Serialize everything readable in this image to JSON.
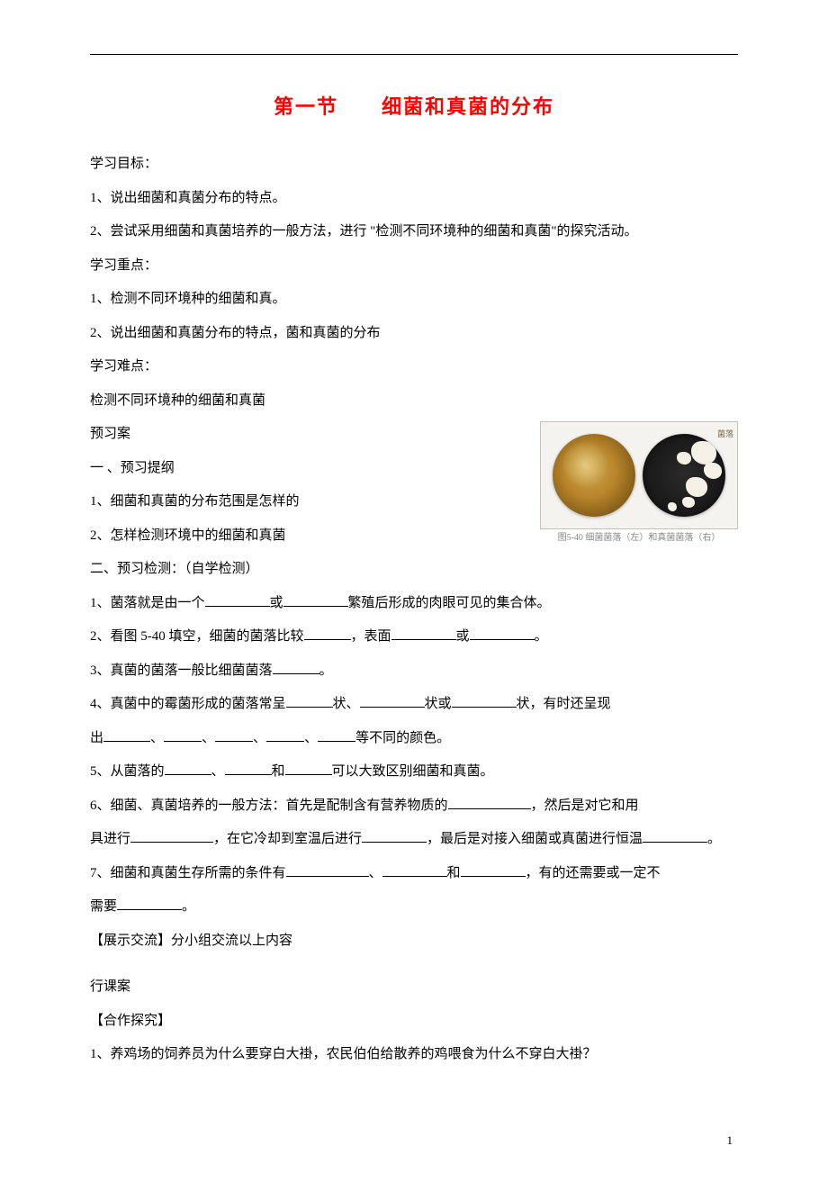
{
  "title": "第一节　　细菌和真菌的分布",
  "sections": {
    "objectives_h": "学习目标：",
    "obj1": "1、说出细菌和真菌分布的特点。",
    "obj2": "2、尝试采用细菌和真菌培养的一般方法，进行 \"检测不同环境种的细菌和真菌\"的探究活动。",
    "focus_h": "学习重点：",
    "focus1": "1、检测不同环境种的细菌和真。",
    "focus2": "2、说出细菌和真菌分布的特点，菌和真菌的分布",
    "diff_h": "学习难点：",
    "diff1": "检测不同环境种的细菌和真菌",
    "preview_h": "预习案",
    "outline_h": "一 、预习提纲",
    "outline1": "1、细菌和真菌的分布范围是怎样的",
    "outline2": "2、怎样检测环境中的细菌和真菌",
    "test_h": "二、预习检测：（自学检测）",
    "q1a": "1、菌落就是由一个",
    "q1b": "或",
    "q1c": "繁殖后形成的肉眼可见的集合体。",
    "q2a": "2、看图 5-40 填空，细菌的菌落比较",
    "q2b": "，表面",
    "q2c": "或",
    "q2d": "。",
    "q3a": "3、真菌的菌落一般比细菌菌落",
    "q3b": "。",
    "q4a": "4、真菌中的霉菌形成的菌落常呈",
    "q4b": "状、",
    "q4c": "状或",
    "q4d": "状，有时还呈现",
    "q4e": "出",
    "q4f": "、",
    "q4g": "、",
    "q4h": "、",
    "q4i": "、",
    "q4j": "等不同的颜色。",
    "q5a": "5、从菌落的",
    "q5b": "、",
    "q5c": "和",
    "q5d": "可以大致区别细菌和真菌。",
    "q6a": "6、细菌、真菌培养的一般方法：首先是配制含有营养物质的",
    "q6b": "，然后是对它和用",
    "q6c": "具进行",
    "q6d": "，在它冷却到室温后进行",
    "q6e": "，最后是对接入细菌或真菌进行恒温",
    "q6f": "。",
    "q7a": "7、细菌和真菌生存所需的条件有",
    "q7b": "、",
    "q7c": "和",
    "q7d": "，有的还需要或一定不",
    "q7e": "需要",
    "q7f": "。",
    "share": "【展示交流】分小组交流以上内容",
    "course_h": "行课案",
    "coop_h": "【合作探究】",
    "coop1": "1、养鸡场的饲养员为什么要穿白大褂，农民伯伯给散养的鸡喂食为什么不穿白大褂？"
  },
  "figure": {
    "tag": "菌落",
    "caption": "图5-40 细菌菌落（左）和真菌菌落（右）"
  },
  "page_number": "1",
  "colors": {
    "title": "#ff0000",
    "text": "#000000",
    "background": "#ffffff"
  }
}
